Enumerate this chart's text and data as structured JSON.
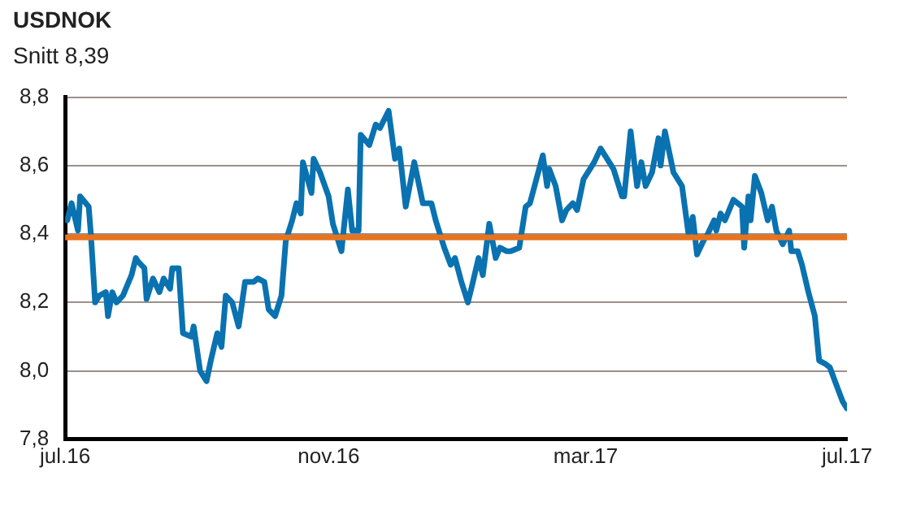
{
  "chart_data": {
    "type": "line",
    "title": "USDNOK",
    "subtitle": "Snitt 8,39",
    "x": [
      "2016-07-02",
      "2016-07-04",
      "2016-07-07",
      "2016-07-08",
      "2016-07-12",
      "2016-07-13",
      "2016-07-15",
      "2016-07-17",
      "2016-07-20",
      "2016-07-21",
      "2016-07-23",
      "2016-07-25",
      "2016-07-28",
      "2016-08-01",
      "2016-08-03",
      "2016-08-04",
      "2016-08-07",
      "2016-08-08",
      "2016-08-11",
      "2016-08-14",
      "2016-08-16",
      "2016-08-19",
      "2016-08-20",
      "2016-08-23",
      "2016-08-25",
      "2016-08-29",
      "2016-08-30",
      "2016-09-02",
      "2016-09-05",
      "2016-09-07",
      "2016-09-10",
      "2016-09-12",
      "2016-09-14",
      "2016-09-17",
      "2016-09-20",
      "2016-09-23",
      "2016-09-27",
      "2016-09-29",
      "2016-10-02",
      "2016-10-04",
      "2016-10-07",
      "2016-10-10",
      "2016-10-12",
      "2016-10-15",
      "2016-10-17",
      "2016-10-19",
      "2016-10-20",
      "2016-10-24",
      "2016-10-25",
      "2016-10-28",
      "2016-11-01",
      "2016-11-03",
      "2016-11-07",
      "2016-11-10",
      "2016-11-12",
      "2016-11-15",
      "2016-11-16",
      "2016-11-20",
      "2016-11-23",
      "2016-11-25",
      "2016-11-29",
      "2016-12-02",
      "2016-12-04",
      "2016-12-07",
      "2016-12-11",
      "2016-12-15",
      "2016-12-19",
      "2016-12-21",
      "2016-12-25",
      "2016-12-28",
      "2016-12-30",
      "2017-01-02",
      "2017-01-05",
      "2017-01-07",
      "2017-01-10",
      "2017-01-12",
      "2017-01-15",
      "2017-01-18",
      "2017-01-20",
      "2017-01-23",
      "2017-01-25",
      "2017-01-29",
      "2017-02-01",
      "2017-02-03",
      "2017-02-06",
      "2017-02-09",
      "2017-02-11",
      "2017-02-12",
      "2017-02-15",
      "2017-02-18",
      "2017-02-20",
      "2017-02-23",
      "2017-02-25",
      "2017-02-28",
      "2017-03-03",
      "2017-03-05",
      "2017-03-08",
      "2017-03-12",
      "2017-03-14",
      "2017-03-18",
      "2017-03-19",
      "2017-03-22",
      "2017-03-25",
      "2017-03-27",
      "2017-03-29",
      "2017-04-01",
      "2017-04-04",
      "2017-04-05",
      "2017-04-07",
      "2017-04-11",
      "2017-04-15",
      "2017-04-18",
      "2017-04-20",
      "2017-04-22",
      "2017-04-25",
      "2017-04-27",
      "2017-04-30",
      "2017-05-01",
      "2017-05-03",
      "2017-05-05",
      "2017-05-09",
      "2017-05-13",
      "2017-05-14",
      "2017-05-16",
      "2017-05-17",
      "2017-05-19",
      "2017-05-22",
      "2017-05-25",
      "2017-05-27",
      "2017-05-29",
      "2017-06-01",
      "2017-06-04",
      "2017-06-05",
      "2017-06-08",
      "2017-06-10",
      "2017-06-13",
      "2017-06-16",
      "2017-06-18",
      "2017-06-21",
      "2017-06-23",
      "2017-06-26",
      "2017-06-29",
      "2017-07-01"
    ],
    "series": [
      {
        "color": "#0a72b0",
        "values": [
          8.44,
          8.49,
          8.41,
          8.51,
          8.48,
          8.4,
          8.2,
          8.22,
          8.23,
          8.16,
          8.23,
          8.2,
          8.22,
          8.28,
          8.33,
          8.32,
          8.3,
          8.21,
          8.27,
          8.23,
          8.27,
          8.24,
          8.3,
          8.3,
          8.11,
          8.1,
          8.13,
          8.0,
          7.97,
          8.03,
          8.11,
          8.07,
          8.22,
          8.2,
          8.13,
          8.26,
          8.26,
          8.27,
          8.26,
          8.18,
          8.16,
          8.22,
          8.38,
          8.44,
          8.49,
          8.46,
          8.61,
          8.52,
          8.62,
          8.58,
          8.51,
          8.43,
          8.35,
          8.53,
          8.41,
          8.41,
          8.69,
          8.66,
          8.72,
          8.71,
          8.76,
          8.62,
          8.65,
          8.48,
          8.61,
          8.49,
          8.49,
          8.44,
          8.36,
          8.31,
          8.33,
          8.26,
          8.2,
          8.25,
          8.33,
          8.28,
          8.43,
          8.33,
          8.36,
          8.35,
          8.35,
          8.36,
          8.48,
          8.49,
          8.56,
          8.63,
          8.54,
          8.59,
          8.54,
          8.44,
          8.47,
          8.49,
          8.47,
          8.56,
          8.59,
          8.61,
          8.65,
          8.61,
          8.59,
          8.51,
          8.51,
          8.7,
          8.54,
          8.61,
          8.54,
          8.58,
          8.68,
          8.6,
          8.7,
          8.58,
          8.54,
          8.4,
          8.45,
          8.34,
          8.38,
          8.4,
          8.44,
          8.41,
          8.46,
          8.44,
          8.5,
          8.48,
          8.36,
          8.51,
          8.44,
          8.57,
          8.52,
          8.44,
          8.48,
          8.41,
          8.37,
          8.41,
          8.35,
          8.35,
          8.31,
          8.23,
          8.16,
          8.03,
          8.02,
          8.01,
          7.96,
          7.91,
          7.89
        ]
      }
    ],
    "xlim": [
      "2016-07-01",
      "2017-07-01"
    ],
    "xticks": [
      {
        "value": "2016-07-01",
        "label": "jul.16"
      },
      {
        "value": "2016-11-01",
        "label": "nov.16"
      },
      {
        "value": "2017-03-01",
        "label": "mar.17"
      },
      {
        "value": "2017-07-01",
        "label": "jul.17"
      }
    ],
    "ylim": [
      7.8,
      8.8
    ],
    "yticks": [
      {
        "value": 7.8,
        "label": "7,8"
      },
      {
        "value": 8.0,
        "label": "8,0"
      },
      {
        "value": 8.2,
        "label": "8,2"
      },
      {
        "value": 8.4,
        "label": "8,4"
      },
      {
        "value": 8.6,
        "label": "8,6"
      },
      {
        "value": 8.8,
        "label": "8,8"
      }
    ],
    "grid": "y",
    "legend": false,
    "marker": "none",
    "line_style": "solid",
    "ref_lines": [
      {
        "axis": "y",
        "value": 8.39,
        "color": "#e8731e"
      }
    ]
  }
}
